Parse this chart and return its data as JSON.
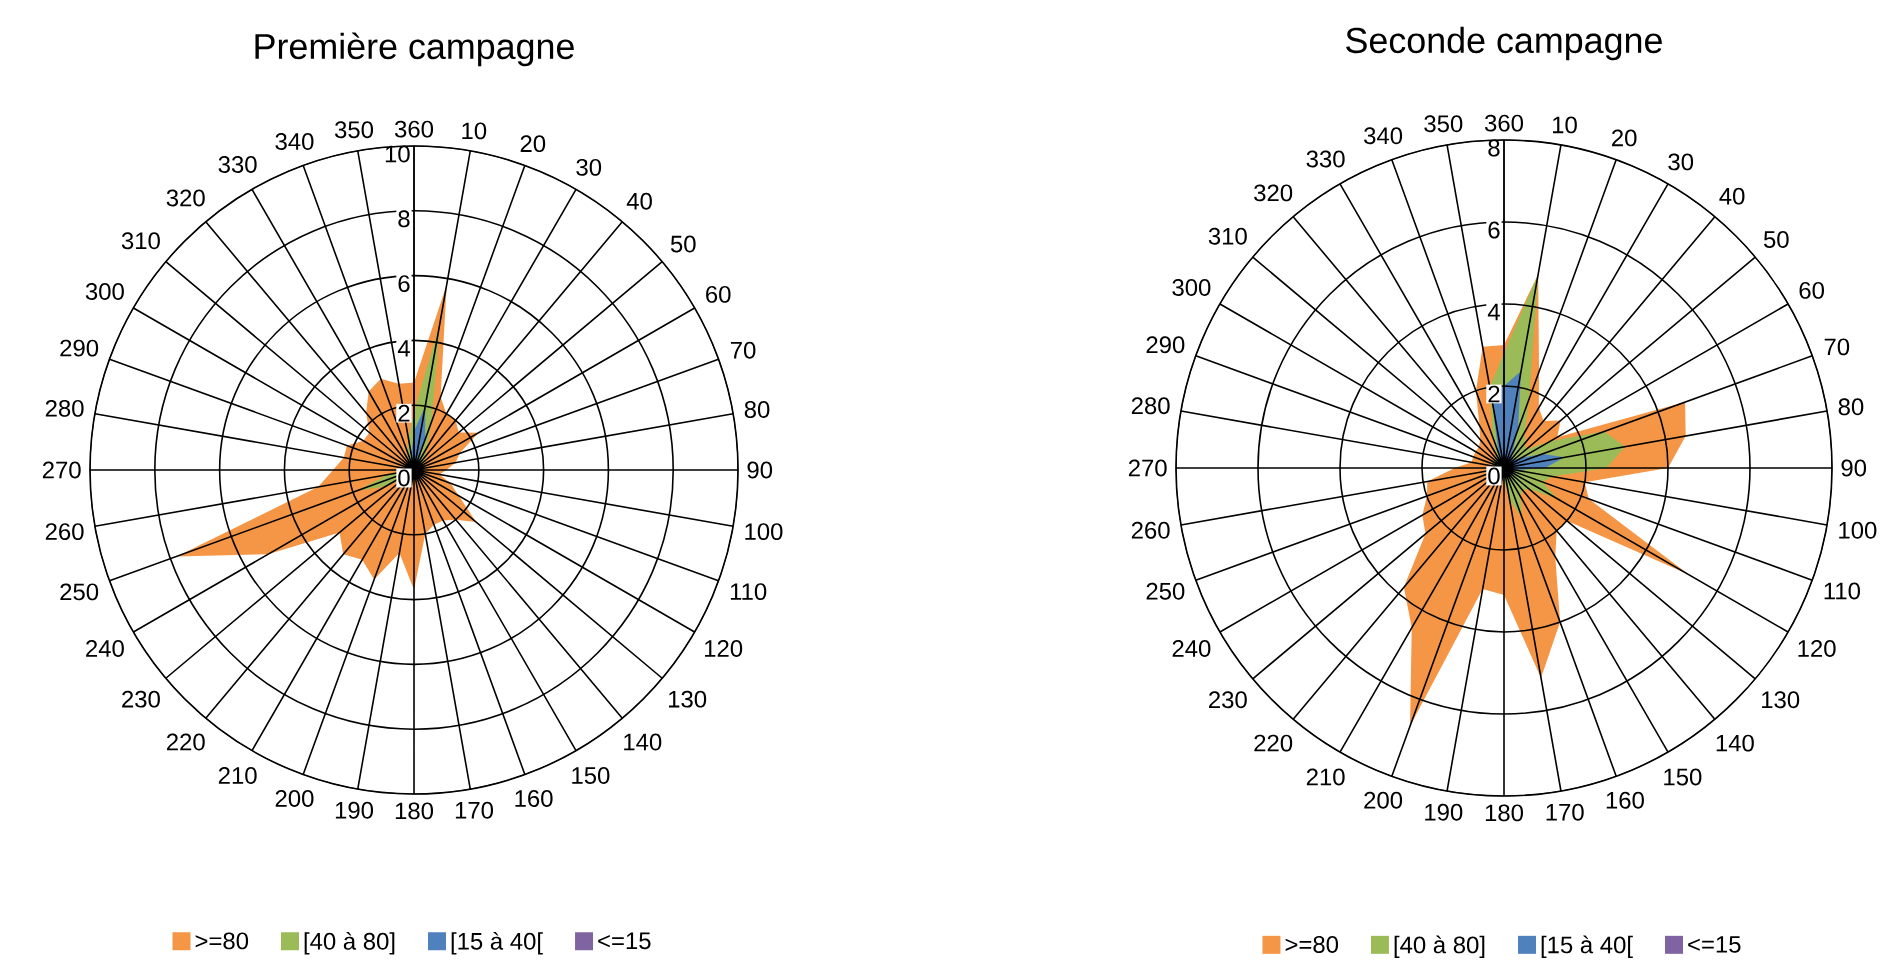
{
  "chart_data": [
    {
      "type": "radar",
      "title": "Première campagne",
      "categories": [
        "360",
        "10",
        "20",
        "30",
        "40",
        "50",
        "60",
        "70",
        "80",
        "90",
        "100",
        "110",
        "120",
        "130",
        "140",
        "150",
        "160",
        "170",
        "180",
        "190",
        "200",
        "210",
        "220",
        "230",
        "240",
        "250",
        "260",
        "270",
        "280",
        "290",
        "300",
        "310",
        "320",
        "330",
        "340",
        "350"
      ],
      "ylim": [
        0,
        10
      ],
      "yticks": [
        0,
        2,
        4,
        6,
        8,
        10
      ],
      "grid": true,
      "legend": "bottom",
      "series": [
        {
          "name": ">=80",
          "color": "#f59646",
          "values": [
            2.7,
            5.8,
            2.4,
            2.0,
            2.0,
            1.8,
            2.3,
            1.5,
            1.3,
            1.0,
            0.8,
            1.2,
            1.6,
            2.5,
            2.0,
            1.8,
            1.8,
            2.0,
            3.7,
            2.6,
            3.6,
            3.2,
            3.4,
            3.0,
            5.2,
            7.8,
            3.0,
            2.5,
            2.2,
            2.2,
            1.8,
            1.8,
            2.3,
            2.8,
            3.0,
            2.7
          ]
        },
        {
          "name": "[40 à 80]",
          "color": "#9bbb59",
          "values": [
            1.8,
            4.6,
            1.6,
            0.8,
            0.5,
            0.4,
            0.3,
            0.3,
            0.3,
            0.3,
            0.3,
            0.3,
            0.3,
            0.3,
            0.3,
            0.3,
            0.3,
            0.3,
            0.3,
            0.3,
            0.3,
            0.3,
            0.3,
            0.4,
            1.0,
            1.9,
            0.8,
            0.3,
            0.3,
            0.3,
            0.3,
            0.3,
            0.3,
            0.4,
            0.6,
            1.0
          ]
        },
        {
          "name": "[15 à 40[",
          "color": "#4f81bd",
          "values": [
            1.2,
            2.0,
            1.0,
            0.2,
            0.2,
            0.2,
            0.2,
            0.2,
            0.2,
            0.2,
            0.2,
            0.2,
            0.2,
            0.2,
            0.2,
            0.2,
            0.2,
            0.2,
            0.2,
            0.2,
            0.2,
            0.2,
            0.2,
            0.2,
            0.2,
            0.4,
            0.2,
            0.2,
            0.2,
            0.2,
            0.2,
            0.2,
            0.2,
            0.2,
            0.3,
            0.5
          ]
        },
        {
          "name": "<=15",
          "color": "#8064a2",
          "values": [
            null,
            null,
            null,
            null,
            null,
            null,
            null,
            null,
            null,
            null,
            null,
            null,
            null,
            null,
            null,
            null,
            null,
            null,
            null,
            null,
            null,
            null,
            null,
            null,
            null,
            null,
            null,
            null,
            null,
            null,
            null,
            null,
            null,
            null,
            null,
            null
          ]
        }
      ]
    },
    {
      "type": "radar",
      "title": "Seconde campagne",
      "categories": [
        "360",
        "10",
        "20",
        "30",
        "40",
        "50",
        "60",
        "70",
        "80",
        "90",
        "100",
        "110",
        "120",
        "130",
        "140",
        "150",
        "160",
        "170",
        "180",
        "190",
        "200",
        "210",
        "220",
        "230",
        "240",
        "250",
        "260",
        "270",
        "280",
        "290",
        "300",
        "310",
        "320",
        "330",
        "340",
        "350"
      ],
      "ylim": [
        0,
        8
      ],
      "yticks": [
        0,
        2,
        4,
        6,
        8
      ],
      "grid": true,
      "legend": "bottom",
      "series": [
        {
          "name": ">=80",
          "color": "#f59646",
          "values": [
            3.0,
            4.8,
            2.5,
            1.7,
            1.5,
            1.8,
            1.5,
            4.7,
            4.5,
            4.0,
            2.0,
            2.2,
            5.2,
            2.0,
            2.0,
            2.5,
            4.0,
            5.2,
            3.1,
            3.0,
            6.7,
            4.5,
            3.8,
            2.5,
            2.3,
            2.0,
            1.9,
            1.2,
            0.8,
            0.8,
            0.8,
            0.8,
            0.9,
            1.2,
            2.0,
            3.0
          ]
        },
        {
          "name": "[40 à 80]",
          "color": "#9bbb59",
          "values": [
            2.8,
            4.8,
            1.8,
            1.0,
            0.8,
            0.7,
            1.3,
            2.6,
            3.0,
            2.5,
            1.2,
            1.0,
            1.5,
            0.8,
            0.7,
            0.8,
            1.3,
            0.8,
            0.3,
            0.3,
            0.3,
            0.3,
            0.3,
            0.3,
            0.3,
            0.3,
            0.3,
            0.3,
            0.3,
            0.3,
            0.3,
            0.3,
            0.3,
            0.4,
            0.8,
            2.0
          ]
        },
        {
          "name": "[15 à 40[",
          "color": "#4f81bd",
          "values": [
            2.0,
            2.4,
            1.0,
            0.4,
            0.3,
            0.3,
            0.5,
            1.0,
            1.5,
            1.0,
            0.3,
            0.2,
            0.3,
            0.2,
            0.2,
            0.2,
            0.2,
            0.2,
            0.2,
            0.2,
            0.2,
            0.2,
            0.2,
            0.2,
            0.2,
            0.2,
            0.2,
            0.2,
            0.2,
            0.2,
            0.2,
            0.2,
            0.2,
            0.2,
            0.4,
            1.8
          ]
        },
        {
          "name": "<=15",
          "color": "#8064a2",
          "values": [
            null,
            null,
            null,
            null,
            null,
            null,
            null,
            null,
            null,
            null,
            null,
            null,
            null,
            null,
            null,
            null,
            null,
            null,
            null,
            null,
            null,
            null,
            null,
            null,
            null,
            null,
            null,
            null,
            null,
            null,
            null,
            null,
            null,
            null,
            null,
            null
          ]
        }
      ]
    }
  ]
}
